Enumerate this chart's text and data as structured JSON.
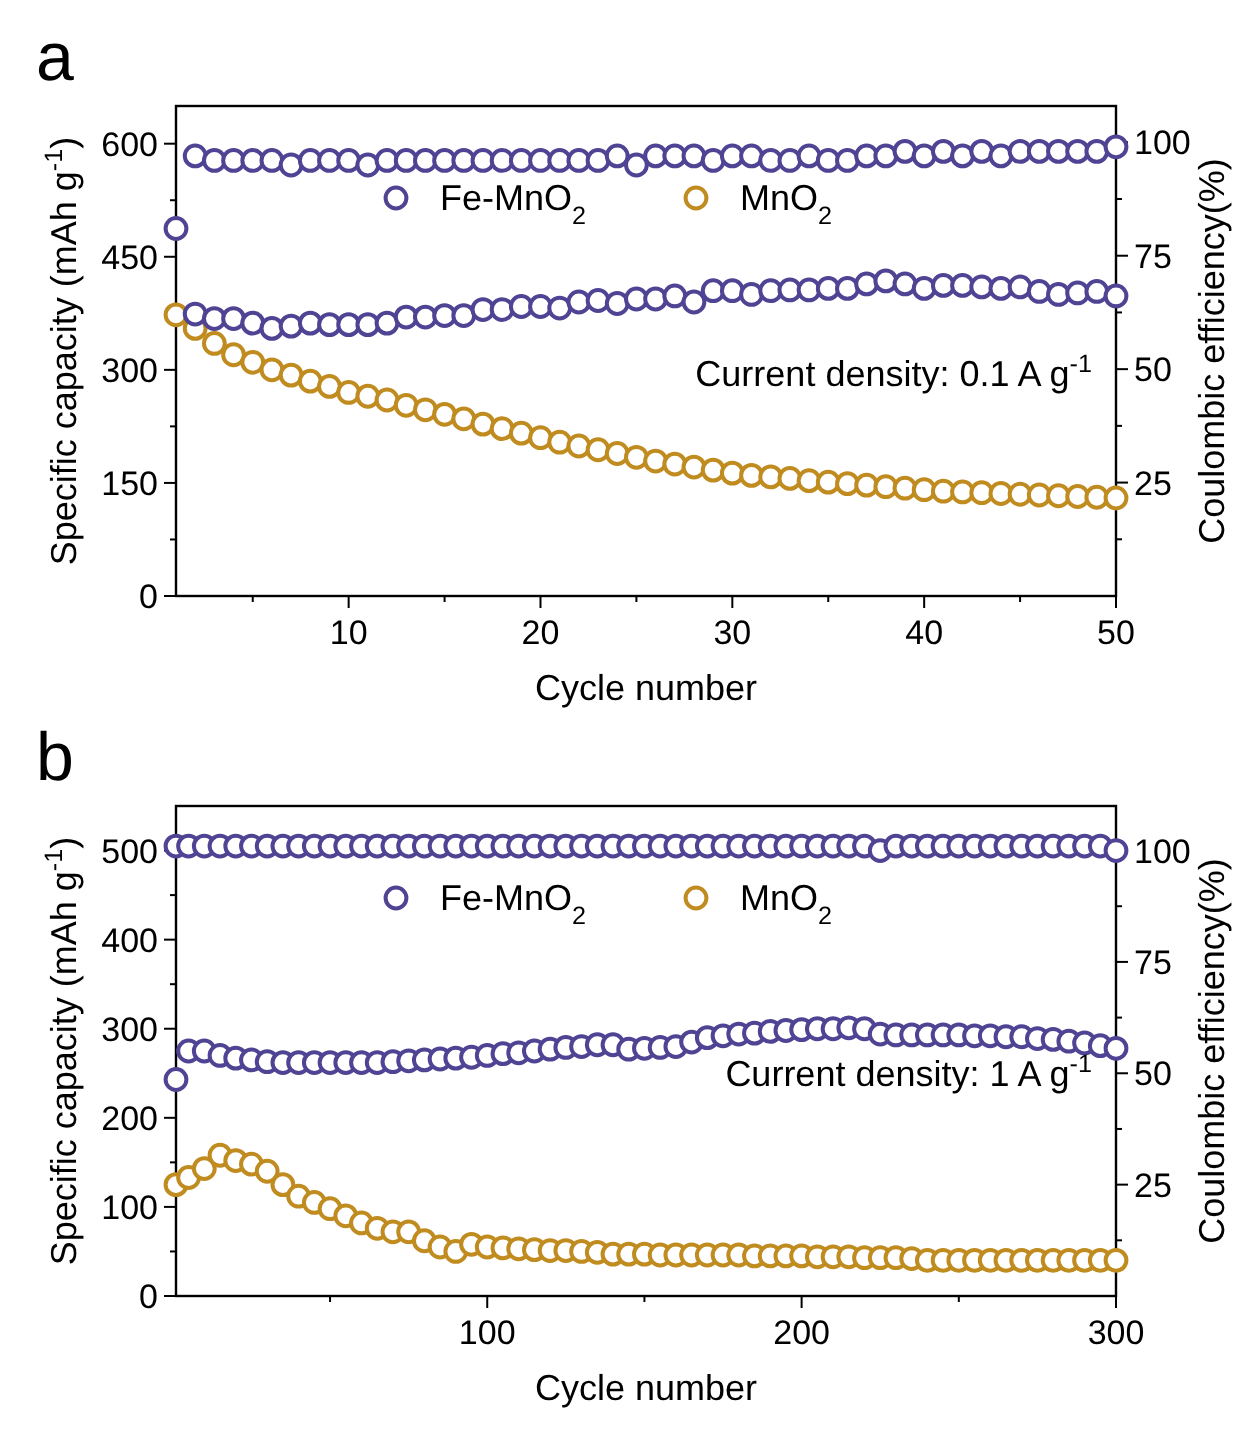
{
  "chart_data": [
    {
      "type": "scatter",
      "title": "a",
      "xlabel": "Cycle number",
      "ylabel": "Specific capacity (mAh g$^{-1}$)",
      "y2label": "Coulombic efficiency(%)",
      "annotations": [
        "Current density: 0.1 A g$^{-1}$"
      ],
      "legend": "top",
      "marker": "circle",
      "x": [
        1,
        2,
        3,
        4,
        5,
        6,
        7,
        8,
        9,
        10,
        11,
        12,
        13,
        14,
        15,
        16,
        17,
        18,
        19,
        20,
        21,
        22,
        23,
        24,
        25,
        26,
        27,
        28,
        29,
        30,
        31,
        32,
        33,
        34,
        35,
        36,
        37,
        38,
        39,
        40,
        41,
        42,
        43,
        44,
        45,
        46,
        47,
        48,
        49,
        50
      ],
      "xlim": [
        1,
        50
      ],
      "xticks": [
        {
          "value": 5,
          "label": null
        },
        10,
        {
          "value": 15,
          "label": null
        },
        20,
        {
          "value": 25,
          "label": null
        },
        30,
        {
          "value": 35,
          "label": null
        },
        40,
        {
          "value": 45,
          "label": null
        },
        50
      ],
      "ylim": [
        0,
        650
      ],
      "yticks": [
        0,
        {
          "value": 75,
          "label": null
        },
        150,
        {
          "value": 225,
          "label": null
        },
        300,
        {
          "value": 375,
          "label": null
        },
        450,
        {
          "value": 525,
          "label": null
        },
        600
      ],
      "y2lim": [
        0,
        108
      ],
      "y2ticks": [
        {
          "value": 12.5,
          "label": null
        },
        25,
        {
          "value": 37.5,
          "label": null
        },
        50,
        {
          "value": 62.5,
          "label": null
        },
        75,
        {
          "value": 87.5,
          "label": null
        },
        100
      ],
      "series": [
        {
          "name": "Fe-MnO$_{2}$",
          "color": "#4f4394",
          "values": [
            null,
            374,
            368,
            368,
            362,
            355,
            358,
            362,
            360,
            360,
            360,
            362,
            370,
            370,
            372,
            372,
            380,
            380,
            384,
            384,
            382,
            390,
            392,
            388,
            394,
            394,
            398,
            390,
            405,
            405,
            400,
            405,
            406,
            406,
            408,
            408,
            414,
            418,
            414,
            408,
            412,
            412,
            410,
            408,
            410,
            404,
            400,
            402,
            404,
            398
          ]
        },
        {
          "name": "MnO$_{2}$",
          "color": "#c08b1f",
          "values": [
            373,
            355,
            335,
            320,
            310,
            300,
            293,
            285,
            278,
            270,
            265,
            260,
            253,
            247,
            241,
            235,
            228,
            222,
            216,
            210,
            204,
            199,
            194,
            189,
            184,
            179,
            175,
            171,
            167,
            163,
            160,
            158,
            156,
            153,
            151,
            149,
            147,
            145,
            143,
            141,
            139,
            138,
            137,
            136,
            135,
            134,
            133,
            132,
            131,
            130
          ]
        },
        {
          "color": "#4f4394",
          "axis": "y2",
          "values": [
            81,
            97,
            96,
            96,
            96,
            96,
            95,
            96,
            96,
            96,
            95,
            96,
            96,
            96,
            96,
            96,
            96,
            96,
            96,
            96,
            96,
            96,
            96,
            97,
            95,
            97,
            97,
            97,
            96,
            97,
            97,
            96,
            96,
            97,
            96,
            96,
            97,
            97,
            98,
            97,
            98,
            97,
            98,
            97,
            98,
            98,
            98,
            98,
            98,
            99
          ]
        }
      ]
    },
    {
      "type": "scatter",
      "title": "b",
      "xlabel": "Cycle number",
      "ylabel": "Specific capacity (mAh g$^{-1}$)",
      "y2label": "Coulombic efficiency(%)",
      "annotations": [
        "Current density: 1 A g$^{-1}$"
      ],
      "legend": "top",
      "marker": "circle",
      "x": [
        1,
        5,
        10,
        15,
        20,
        25,
        30,
        35,
        40,
        45,
        50,
        55,
        60,
        65,
        70,
        75,
        80,
        85,
        90,
        95,
        100,
        105,
        110,
        115,
        120,
        125,
        130,
        135,
        140,
        145,
        150,
        155,
        160,
        165,
        170,
        175,
        180,
        185,
        190,
        195,
        200,
        205,
        210,
        215,
        220,
        225,
        230,
        235,
        240,
        245,
        250,
        255,
        260,
        265,
        270,
        275,
        280,
        285,
        290,
        295,
        300
      ],
      "xlim": [
        1,
        300
      ],
      "xticks": [
        {
          "value": 50,
          "label": null
        },
        100,
        {
          "value": 150,
          "label": null
        },
        200,
        {
          "value": 250,
          "label": null
        },
        300
      ],
      "ylim": [
        0,
        550
      ],
      "yticks": [
        0,
        {
          "value": 50,
          "label": null
        },
        100,
        {
          "value": 150,
          "label": null
        },
        200,
        {
          "value": 250,
          "label": null
        },
        300,
        {
          "value": 350,
          "label": null
        },
        400,
        {
          "value": 450,
          "label": null
        },
        500
      ],
      "y2lim": [
        0,
        110
      ],
      "y2ticks": [
        {
          "value": 12.5,
          "label": null
        },
        25,
        {
          "value": 37.5,
          "label": null
        },
        50,
        {
          "value": 62.5,
          "label": null
        },
        75,
        {
          "value": 87.5,
          "label": null
        },
        100
      ],
      "series": [
        {
          "name": "Fe-MnO$_{2}$",
          "color": "#4f4394",
          "values": [
            243,
            275,
            275,
            270,
            267,
            265,
            263,
            262,
            262,
            262,
            262,
            262,
            262,
            262,
            263,
            264,
            265,
            266,
            267,
            268,
            270,
            272,
            273,
            275,
            277,
            279,
            280,
            282,
            282,
            277,
            278,
            279,
            280,
            285,
            290,
            292,
            294,
            295,
            297,
            298,
            299,
            300,
            300,
            301,
            300,
            294,
            293,
            293,
            293,
            293,
            293,
            292,
            292,
            291,
            291,
            289,
            288,
            286,
            284,
            281,
            278
          ]
        },
        {
          "name": "MnO$_{2}$",
          "color": "#c08b1f",
          "values": [
            125,
            133,
            143,
            158,
            152,
            148,
            140,
            125,
            112,
            105,
            98,
            90,
            82,
            76,
            72,
            72,
            62,
            55,
            50,
            58,
            55,
            54,
            53,
            52,
            51,
            51,
            50,
            49,
            47,
            47,
            47,
            46,
            46,
            46,
            46,
            46,
            46,
            45,
            45,
            45,
            45,
            44,
            44,
            44,
            43,
            43,
            43,
            42,
            40,
            40,
            40,
            40,
            40,
            40,
            40,
            40,
            40,
            40,
            40,
            40,
            40
          ]
        },
        {
          "color": "#4f4394",
          "axis": "y2",
          "values": [
            101,
            101,
            101,
            101,
            101,
            101,
            101,
            101,
            101,
            101,
            101,
            101,
            101,
            101,
            101,
            101,
            101,
            101,
            101,
            101,
            101,
            101,
            101,
            101,
            101,
            101,
            101,
            101,
            101,
            101,
            101,
            101,
            101,
            101,
            101,
            101,
            101,
            101,
            101,
            101,
            101,
            101,
            101,
            101,
            101,
            100,
            101,
            101,
            101,
            101,
            101,
            101,
            101,
            101,
            101,
            101,
            101,
            101,
            101,
            101,
            100
          ]
        }
      ]
    }
  ]
}
